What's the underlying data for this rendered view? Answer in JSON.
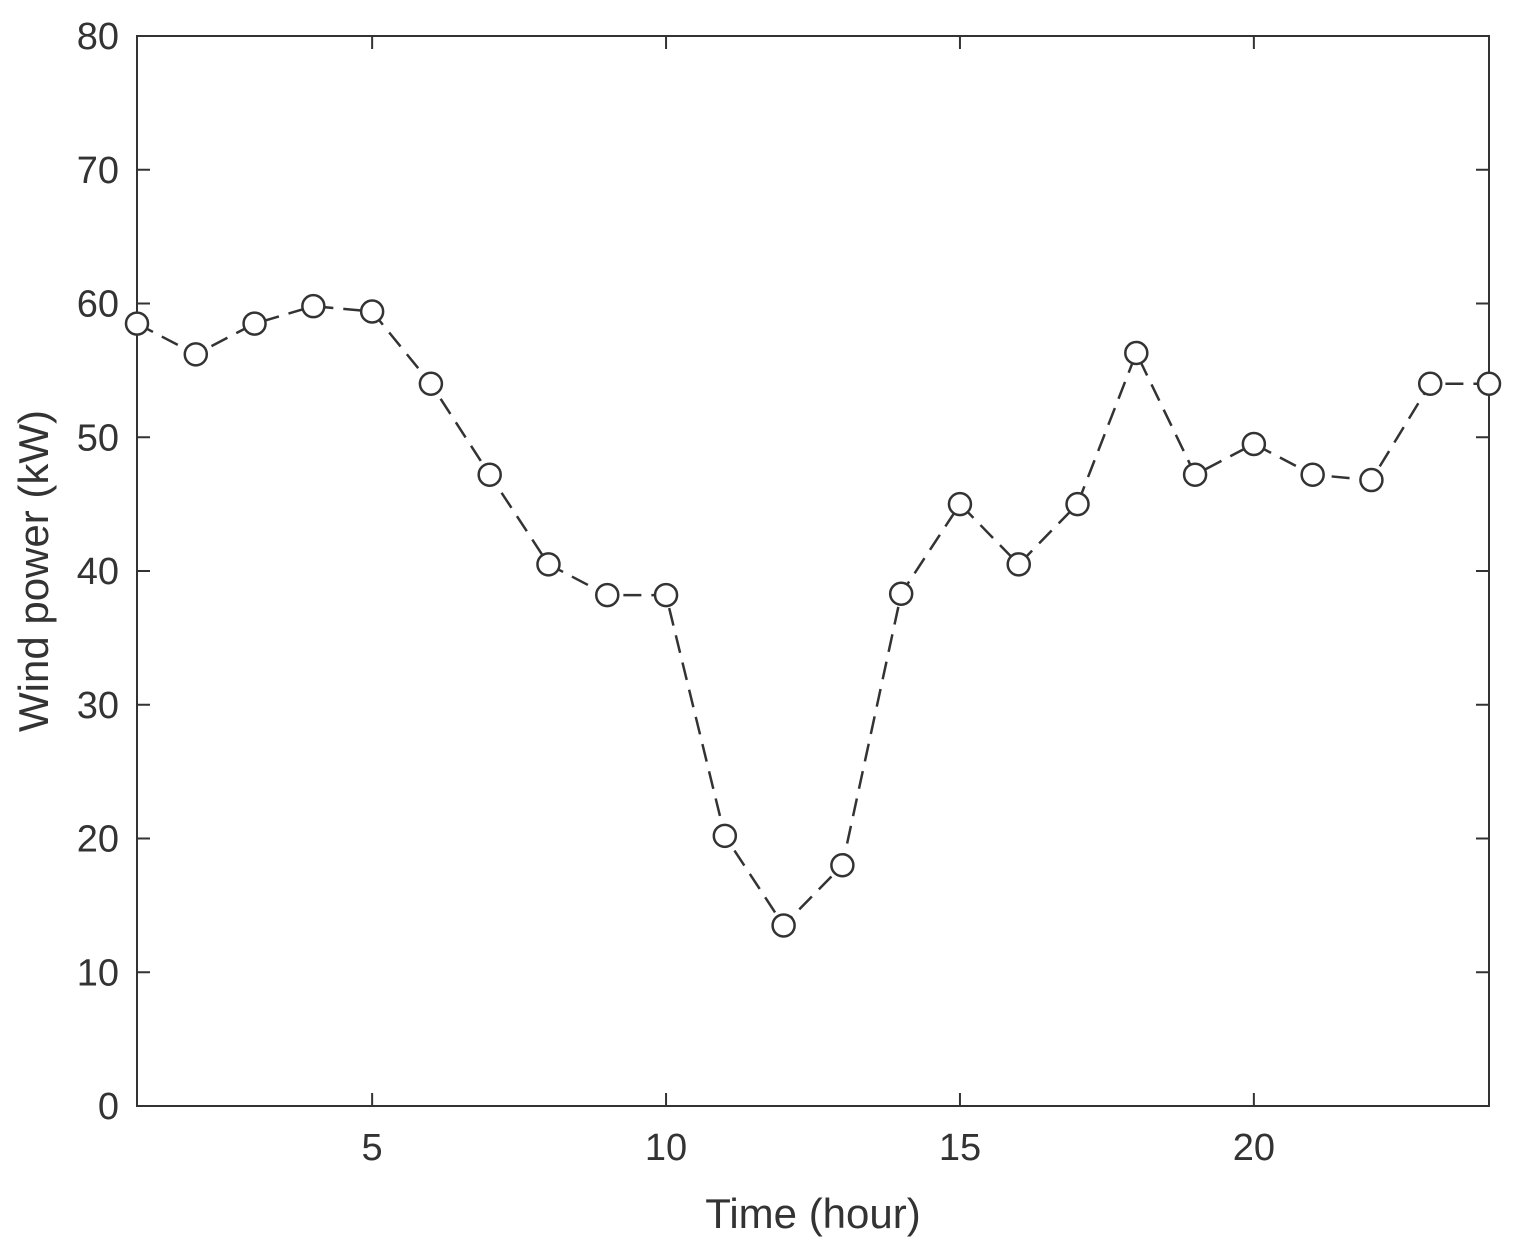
{
  "chart_data": {
    "type": "line",
    "title": "",
    "xlabel": "Time (hour)",
    "ylabel": "Wind power (kW)",
    "xlim": [
      1,
      24
    ],
    "ylim": [
      0,
      80
    ],
    "xticks": [
      5,
      10,
      15,
      20
    ],
    "yticks": [
      0,
      10,
      20,
      30,
      40,
      50,
      60,
      70,
      80
    ],
    "grid": false,
    "legend": "none",
    "series": [
      {
        "line_style": "dashed",
        "marker": "circle",
        "color": "#333333",
        "x": [
          1,
          2,
          3,
          4,
          5,
          6,
          7,
          8,
          9,
          10,
          11,
          12,
          13,
          14,
          15,
          16,
          17,
          18,
          19,
          20,
          21,
          22,
          23,
          24
        ],
        "values": [
          58.5,
          56.2,
          58.5,
          59.8,
          59.4,
          54.0,
          47.2,
          40.5,
          38.2,
          38.2,
          20.2,
          13.5,
          18.0,
          38.3,
          45.0,
          40.5,
          45.0,
          56.3,
          47.2,
          49.5,
          47.2,
          46.8,
          54.0,
          54.0
        ]
      }
    ]
  }
}
